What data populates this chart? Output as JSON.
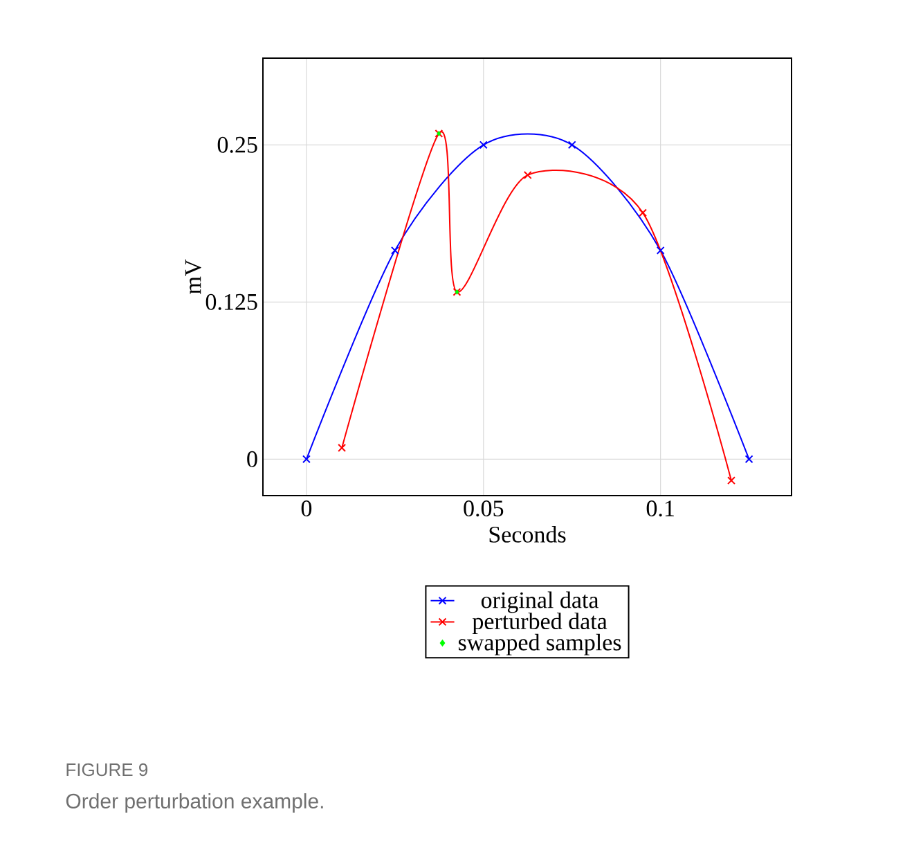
{
  "chart_data": {
    "type": "line",
    "xlabel": "Seconds",
    "ylabel": "mV",
    "x": [
      0,
      0.025,
      0.05,
      0.075,
      0.1,
      0.125
    ],
    "series": [
      {
        "name": "original data",
        "color": "#0000ff",
        "marker": "cross",
        "values": [
          0,
          0.166,
          0.25,
          0.25,
          0.166,
          0
        ]
      },
      {
        "name": "perturbed data",
        "color": "#ff0000",
        "marker": "cross",
        "x": [
          0.01,
          0.0374,
          0.0425,
          0.0625,
          0.095,
          0.12
        ],
        "values": [
          0.009,
          0.259,
          0.133,
          0.226,
          0.196,
          -0.017
        ]
      },
      {
        "name": "swapped samples",
        "type": "scatter",
        "color": "#00ff00",
        "marker": "diamond",
        "x": [
          0.0374,
          0.0425
        ],
        "values": [
          0.259,
          0.133
        ]
      }
    ],
    "xlim": [
      -0.0123,
      0.137
    ],
    "ylim": [
      -0.029,
      0.319
    ],
    "xticks": [
      0,
      0.05,
      0.1
    ],
    "yticks": [
      0,
      0.125,
      0.25
    ],
    "grid": true,
    "legend": "bottom",
    "annotations": [
      "FIGURE 9",
      "Order perturbation example."
    ]
  }
}
